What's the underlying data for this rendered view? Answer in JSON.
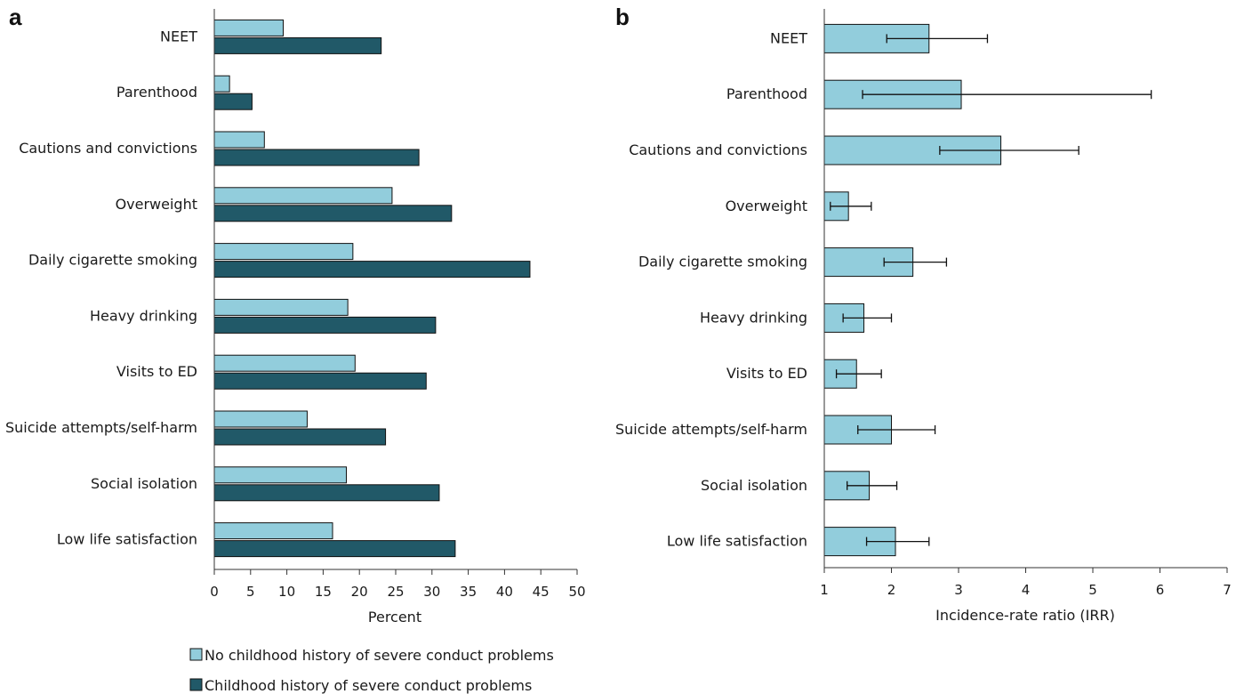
{
  "chart_data": [
    {
      "panel_label": "a",
      "type": "bar",
      "orientation": "horizontal",
      "categories": [
        "NEET",
        "Parenthood",
        "Cautions and convictions",
        "Overweight",
        "Daily cigarette smoking",
        "Heavy drinking",
        "Visits to ED",
        "Suicide attempts/self-harm",
        "Social isolation",
        "Low life satisfaction"
      ],
      "series": [
        {
          "name": "No childhood history of severe conduct problems",
          "color": "#92cddc",
          "values": [
            9.5,
            2.1,
            6.9,
            24.5,
            19.1,
            18.4,
            19.4,
            12.8,
            18.2,
            16.3
          ]
        },
        {
          "name": "Childhood history of severe conduct problems",
          "color": "#215968",
          "values": [
            23.0,
            5.2,
            28.2,
            32.7,
            43.5,
            30.5,
            29.2,
            23.6,
            31.0,
            33.2
          ]
        }
      ],
      "xlabel": "Percent",
      "xlim": [
        0,
        50
      ],
      "xticks": [
        0,
        5,
        10,
        15,
        20,
        25,
        30,
        35,
        40,
        45,
        50
      ],
      "grid": false,
      "legend": "bottom"
    },
    {
      "panel_label": "b",
      "type": "bar",
      "orientation": "horizontal",
      "categories": [
        "NEET",
        "Parenthood",
        "Cautions and convictions",
        "Overweight",
        "Daily cigarette smoking",
        "Heavy drinking",
        "Visits to ED",
        "Suicide attempts/self-harm",
        "Social isolation",
        "Low life satisfaction"
      ],
      "series": [
        {
          "color": "#92cddc",
          "values": [
            2.56,
            3.04,
            3.63,
            1.36,
            2.32,
            1.59,
            1.48,
            2.0,
            1.67,
            2.06
          ],
          "ci_low": [
            1.93,
            1.57,
            2.72,
            1.09,
            1.89,
            1.28,
            1.18,
            1.5,
            1.34,
            1.63
          ],
          "ci_high": [
            3.43,
            5.87,
            4.79,
            1.7,
            2.82,
            2.0,
            1.85,
            2.65,
            2.08,
            2.56
          ]
        }
      ],
      "xlabel": "Incidence-rate ratio (IRR)",
      "xlim": [
        1,
        7
      ],
      "xticks": [
        1,
        2,
        3,
        4,
        5,
        6,
        7
      ],
      "grid": false
    }
  ]
}
